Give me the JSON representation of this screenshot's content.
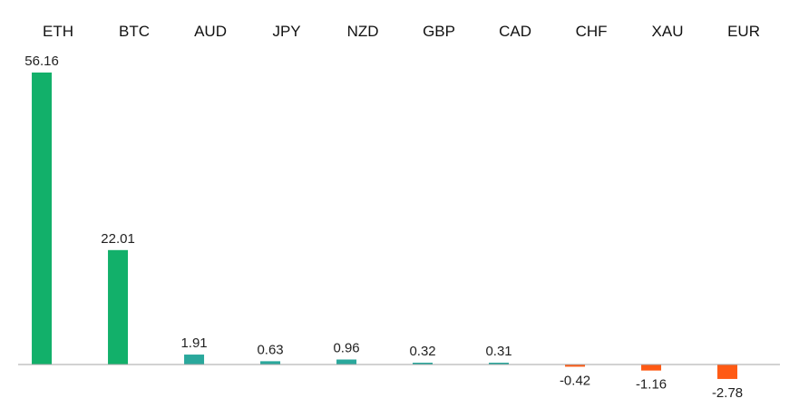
{
  "chart_data": {
    "type": "bar",
    "title": "",
    "xlabel": "",
    "ylabel": "",
    "categories": [
      "ETH",
      "BTC",
      "AUD",
      "JPY",
      "NZD",
      "GBP",
      "CAD",
      "CHF",
      "XAU",
      "EUR"
    ],
    "values": [
      56.16,
      22.01,
      1.91,
      0.63,
      0.96,
      0.32,
      0.31,
      -0.42,
      -1.16,
      -2.78
    ],
    "value_labels": [
      "56.16",
      "22.01",
      "1.91",
      "0.63",
      "0.96",
      "0.32",
      "0.31",
      "-0.42",
      "-1.16",
      "-2.78"
    ],
    "ylim": [
      -3,
      56.16
    ],
    "grid": false,
    "legend": "none",
    "category_label_position": "top",
    "colors": {
      "strong_positive": "#12b06a",
      "mild_positive": "#2aa89c",
      "negative": "#ff5a14",
      "axis": "#a6a6a6"
    }
  }
}
